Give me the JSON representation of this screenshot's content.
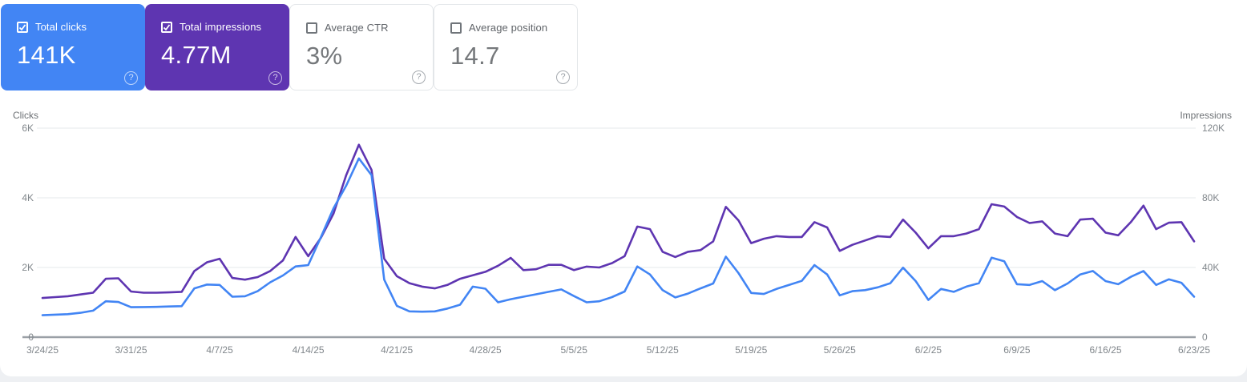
{
  "cards": [
    {
      "label": "Total clicks",
      "value": "141K",
      "checked": true,
      "bg": "#4285f4",
      "text": "#ffffff"
    },
    {
      "label": "Total impressions",
      "value": "4.77M",
      "checked": true,
      "bg": "#5e35b1",
      "text": "#ffffff"
    },
    {
      "label": "Average CTR",
      "value": "3%",
      "checked": false,
      "bg": "#ffffff",
      "text": "#75787b"
    },
    {
      "label": "Average position",
      "value": "14.7",
      "checked": false,
      "bg": "#ffffff",
      "text": "#75787b"
    }
  ],
  "help_icon_glyph": "?",
  "chart_data": {
    "type": "line",
    "x_unit": "day",
    "n_points": 92,
    "x_start": "3/24/25",
    "x_end": "6/23/25",
    "x_tick_labels": [
      "3/24/25",
      "3/31/25",
      "4/7/25",
      "4/14/25",
      "4/21/25",
      "4/28/25",
      "5/5/25",
      "5/12/25",
      "5/19/25",
      "5/26/25",
      "6/2/25",
      "6/9/25",
      "6/16/25",
      "6/23/25"
    ],
    "left_axis": {
      "label": "Clicks",
      "range": [
        0,
        6000
      ],
      "tick_labels": [
        "0",
        "2K",
        "4K",
        "6K"
      ]
    },
    "right_axis": {
      "label": "Impressions",
      "range": [
        0,
        120000
      ],
      "tick_labels": [
        "0",
        "40K",
        "80K",
        "120K"
      ]
    },
    "grid": true,
    "legend_position": "none",
    "series": [
      {
        "name": "Clicks",
        "axis": "left",
        "color": "#4285f4",
        "values": [
          630,
          645,
          660,
          700,
          760,
          1030,
          1010,
          860,
          865,
          870,
          880,
          890,
          1400,
          1510,
          1500,
          1160,
          1175,
          1320,
          1575,
          1770,
          2030,
          2070,
          2870,
          3700,
          4350,
          5130,
          4650,
          1650,
          900,
          740,
          730,
          740,
          820,
          930,
          1450,
          1390,
          1000,
          1090,
          1160,
          1230,
          1300,
          1370,
          1180,
          1000,
          1030,
          1150,
          1310,
          2030,
          1800,
          1350,
          1140,
          1250,
          1400,
          1540,
          2310,
          1840,
          1270,
          1240,
          1385,
          1500,
          1615,
          2070,
          1800,
          1200,
          1320,
          1350,
          1430,
          1550,
          1995,
          1610,
          1070,
          1385,
          1300,
          1450,
          1550,
          2280,
          2180,
          1520,
          1500,
          1610,
          1350,
          1540,
          1800,
          1900,
          1610,
          1520,
          1730,
          1900,
          1500,
          1660,
          1560,
          1160
        ]
      },
      {
        "name": "Impressions",
        "axis": "right",
        "color": "#5e35b1",
        "values": [
          22500,
          23000,
          23500,
          24500,
          25500,
          33500,
          33800,
          26200,
          25500,
          25500,
          25700,
          26000,
          38000,
          43000,
          45000,
          34000,
          33000,
          34500,
          38000,
          44000,
          57500,
          46500,
          57000,
          71000,
          93000,
          110500,
          96000,
          45000,
          35000,
          31000,
          29000,
          28000,
          30000,
          33500,
          35500,
          37500,
          41000,
          45500,
          38500,
          39000,
          41500,
          41500,
          38500,
          40500,
          40000,
          42500,
          46500,
          63500,
          62000,
          49000,
          46000,
          49000,
          50000,
          55000,
          74800,
          67000,
          54000,
          56500,
          58000,
          57500,
          57500,
          66000,
          63000,
          49500,
          53000,
          55500,
          58000,
          57500,
          67500,
          60000,
          51000,
          58000,
          58000,
          59500,
          62000,
          76300,
          75000,
          69000,
          65500,
          66500,
          59500,
          58000,
          67500,
          68000,
          60000,
          58500,
          66000,
          75500,
          62000,
          65700,
          66000,
          55000
        ]
      }
    ]
  },
  "colors": {
    "clicks_blue": "#4285f4",
    "impressions_purple": "#5e35b1",
    "grid_line": "#e6e8eb",
    "zero_axis_line": "#9aa0a6",
    "tick_text": "#80868b",
    "axis_title_text": "#6d7175",
    "card_value_gray": "#75787b",
    "card_border": "#e3e6e9",
    "page_bg": "#eef0f3",
    "panel_bg": "#ffffff"
  }
}
